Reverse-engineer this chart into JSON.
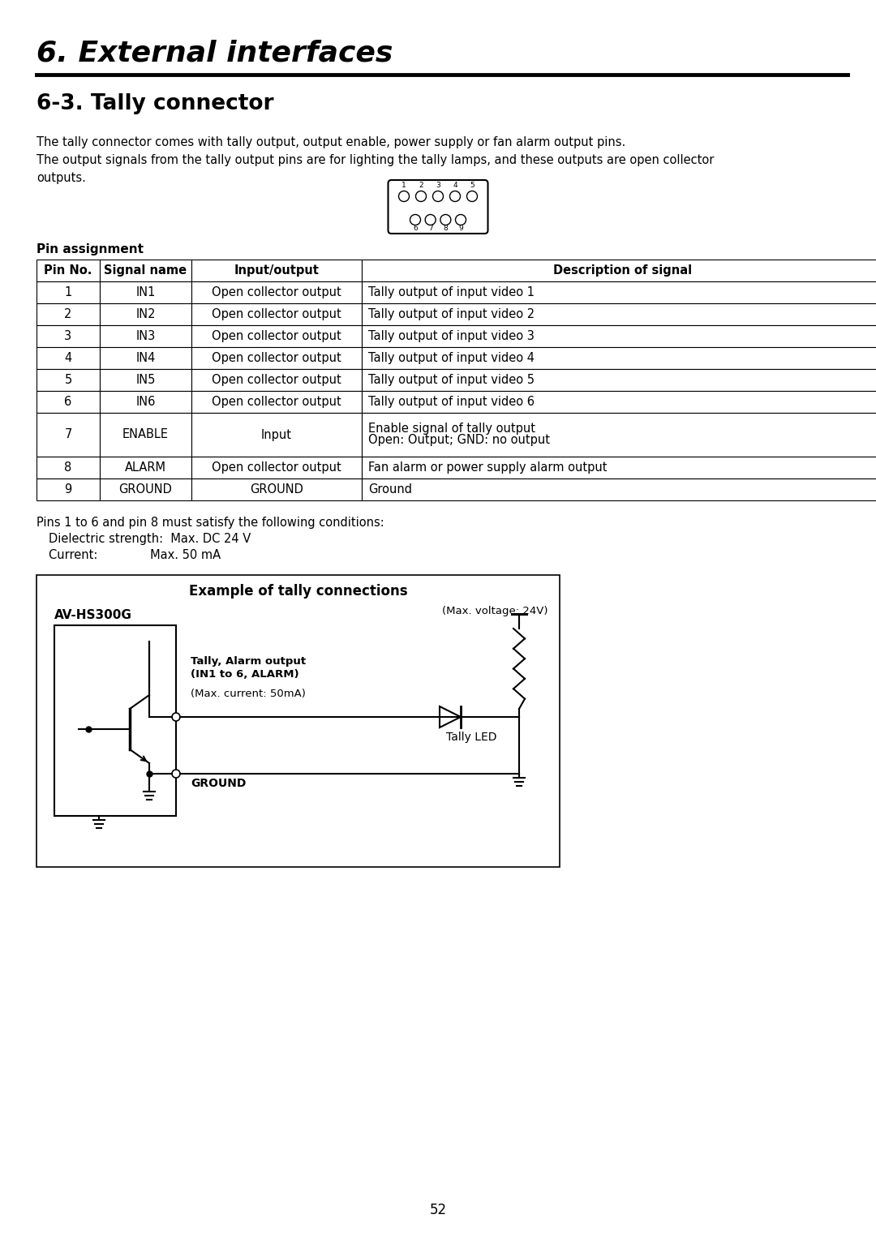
{
  "page_title": "6. External interfaces",
  "section_title": "6-3. Tally connector",
  "description_line1": "The tally connector comes with tally output, output enable, power supply or fan alarm output pins.",
  "description_line2": "The output signals from the tally output pins are for lighting the tally lamps, and these outputs are open collector",
  "description_line3": "outputs.",
  "pin_assignment_label": "Pin assignment",
  "table_headers": [
    "Pin No.",
    "Signal name",
    "Input/output",
    "Description of signal"
  ],
  "table_rows": [
    [
      "1",
      "IN1",
      "Open collector output",
      "Tally output of input video 1"
    ],
    [
      "2",
      "IN2",
      "Open collector output",
      "Tally output of input video 2"
    ],
    [
      "3",
      "IN3",
      "Open collector output",
      "Tally output of input video 3"
    ],
    [
      "4",
      "IN4",
      "Open collector output",
      "Tally output of input video 4"
    ],
    [
      "5",
      "IN5",
      "Open collector output",
      "Tally output of input video 5"
    ],
    [
      "6",
      "IN6",
      "Open collector output",
      "Tally output of input video 6"
    ],
    [
      "7",
      "ENABLE",
      "Input",
      "Enable signal of tally output\nOpen: Output; GND: no output"
    ],
    [
      "8",
      "ALARM",
      "Open collector output",
      "Fan alarm or power supply alarm output"
    ],
    [
      "9",
      "GROUND",
      "GROUND",
      "Ground"
    ]
  ],
  "conditions_line1": "Pins 1 to 6 and pin 8 must satisfy the following conditions:",
  "conditions_line2": "Dielectric strength:  Max. DC 24 V",
  "conditions_line3": "Current:              Max. 50 mA",
  "diagram_title": "Example of tally connections",
  "diagram_av": "AV-HS300G",
  "diagram_max_voltage": "(Max. voltage: 24V)",
  "diagram_tally_alarm": "Tally, Alarm output",
  "diagram_in1_alarm": "(IN1 to 6, ALARM)",
  "diagram_max_current": "(Max. current: 50mA)",
  "diagram_tally_led": "Tally LED",
  "diagram_ground": "GROUND",
  "page_number": "52",
  "bg_color": "#ffffff"
}
